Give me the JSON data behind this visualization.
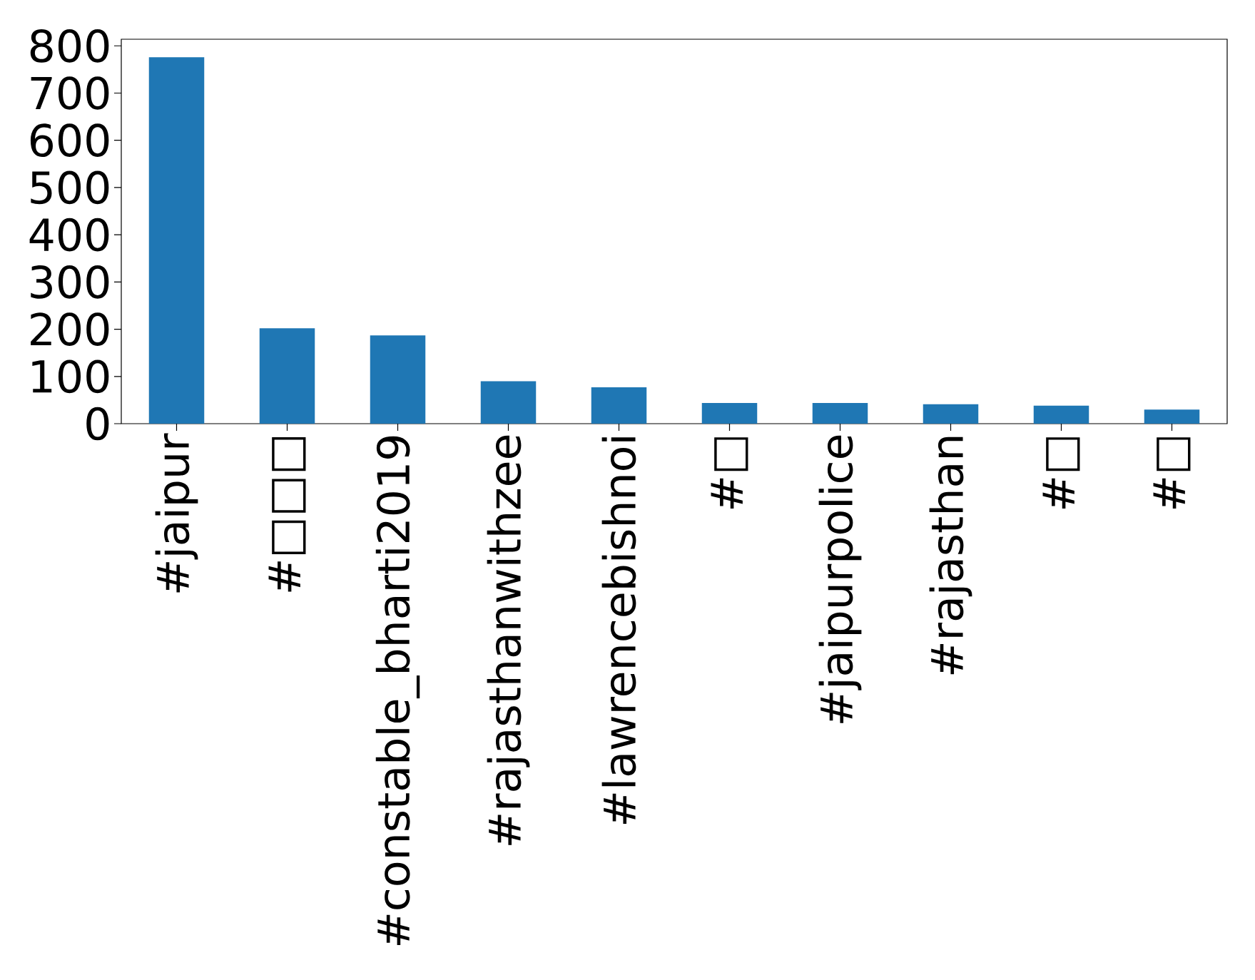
{
  "chart_data": {
    "type": "bar",
    "categories": [
      "#jaipur",
      "#□□□",
      "#constable_bharti2019",
      "#rajasthanwithzee",
      "#lawrencebishnoi",
      "#□",
      "#jaipurpolice",
      "#rajasthan",
      "#□",
      "#□"
    ],
    "values": [
      776,
      202,
      187,
      90,
      77,
      44,
      44,
      41,
      38,
      30
    ],
    "color": "#1f77b4",
    "ylim": [
      0,
      814
    ],
    "yticks": [
      0,
      100,
      200,
      300,
      400,
      500,
      600,
      700,
      800
    ],
    "grid": false
  }
}
